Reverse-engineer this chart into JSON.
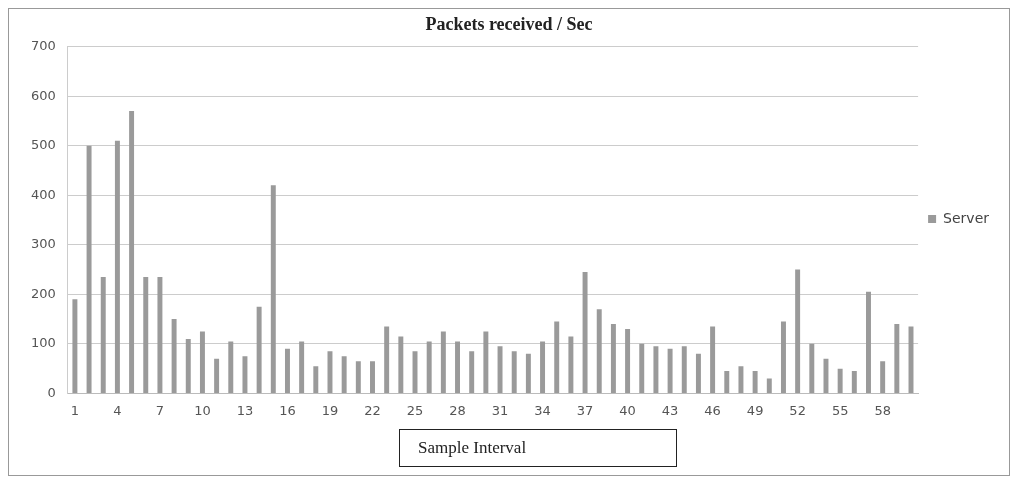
{
  "chart_data": {
    "type": "bar",
    "title": "Packets received / Sec",
    "xlabel": "Sample Interval",
    "categories": [
      "1",
      null,
      null,
      "4",
      null,
      null,
      "7",
      null,
      null,
      "10",
      null,
      null,
      "13",
      null,
      null,
      "16",
      null,
      null,
      "19",
      null,
      null,
      "22",
      null,
      null,
      "25",
      null,
      null,
      "28",
      null,
      null,
      "31",
      null,
      null,
      "34",
      null,
      null,
      "37",
      null,
      null,
      "40",
      null,
      null,
      "43",
      null,
      null,
      "46",
      null,
      null,
      "49",
      null,
      null,
      "52",
      null,
      null,
      "55",
      null,
      null,
      "58",
      null,
      null
    ],
    "series": [
      {
        "name": "Server",
        "color": "#9a9a9a",
        "values": [
          190,
          500,
          235,
          510,
          570,
          235,
          235,
          150,
          110,
          125,
          70,
          105,
          75,
          175,
          420,
          90,
          105,
          55,
          85,
          75,
          65,
          65,
          135,
          115,
          85,
          105,
          125,
          105,
          85,
          125,
          95,
          85,
          80,
          105,
          145,
          115,
          245,
          170,
          140,
          130,
          100,
          95,
          90,
          95,
          80,
          135,
          45,
          55,
          45,
          30,
          145,
          250,
          100,
          70,
          50,
          45,
          205,
          65,
          140,
          135
        ]
      }
    ],
    "ylim": [
      0,
      700
    ],
    "yticks": [
      0,
      100,
      200,
      300,
      400,
      500,
      600,
      700
    ],
    "grid": "y",
    "legend": "right"
  }
}
